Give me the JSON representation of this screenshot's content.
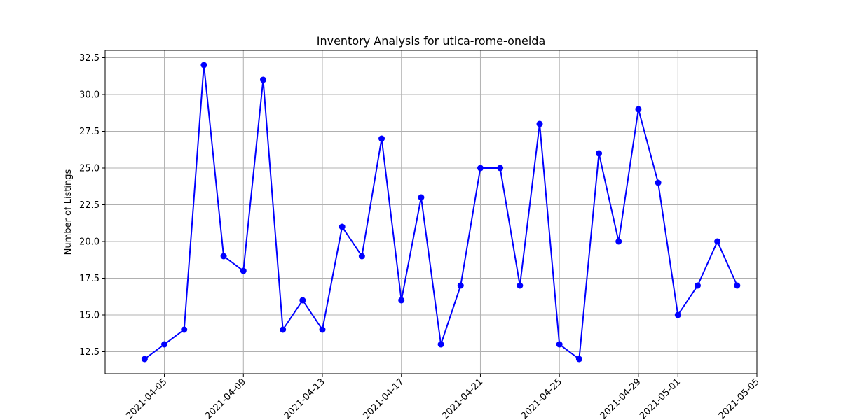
{
  "chart_data": {
    "type": "line",
    "title": "Inventory Analysis for utica-rome-oneida",
    "xlabel": "",
    "ylabel": "Number of Listings",
    "grid": true,
    "legend": "none",
    "series_color": "#0000ff",
    "x": [
      "2021-04-04",
      "2021-04-05",
      "2021-04-06",
      "2021-04-07",
      "2021-04-08",
      "2021-04-09",
      "2021-04-10",
      "2021-04-11",
      "2021-04-12",
      "2021-04-13",
      "2021-04-14",
      "2021-04-15",
      "2021-04-16",
      "2021-04-17",
      "2021-04-18",
      "2021-04-19",
      "2021-04-20",
      "2021-04-21",
      "2021-04-22",
      "2021-04-23",
      "2021-04-24",
      "2021-04-25",
      "2021-04-26",
      "2021-04-27",
      "2021-04-28",
      "2021-04-29",
      "2021-04-30",
      "2021-05-01",
      "2021-05-02",
      "2021-05-03",
      "2021-05-04"
    ],
    "values": [
      12,
      13,
      14,
      32,
      19,
      18,
      31,
      14,
      16,
      14,
      21,
      19,
      27,
      16,
      23,
      13,
      17,
      25,
      25,
      17,
      28,
      13,
      12,
      26,
      20,
      29,
      24,
      15,
      17,
      20,
      17
    ],
    "xlim": [
      "2021-04-02",
      "2021-05-05"
    ],
    "ylim": [
      11.0,
      33.0
    ],
    "x_ticks": [
      "2021-04-05",
      "2021-04-09",
      "2021-04-13",
      "2021-04-17",
      "2021-04-21",
      "2021-04-25",
      "2021-04-29",
      "2021-05-01",
      "2021-05-05"
    ],
    "y_ticks": [
      "12.5",
      "15.0",
      "17.5",
      "20.0",
      "22.5",
      "25.0",
      "27.5",
      "30.0",
      "32.5"
    ]
  }
}
